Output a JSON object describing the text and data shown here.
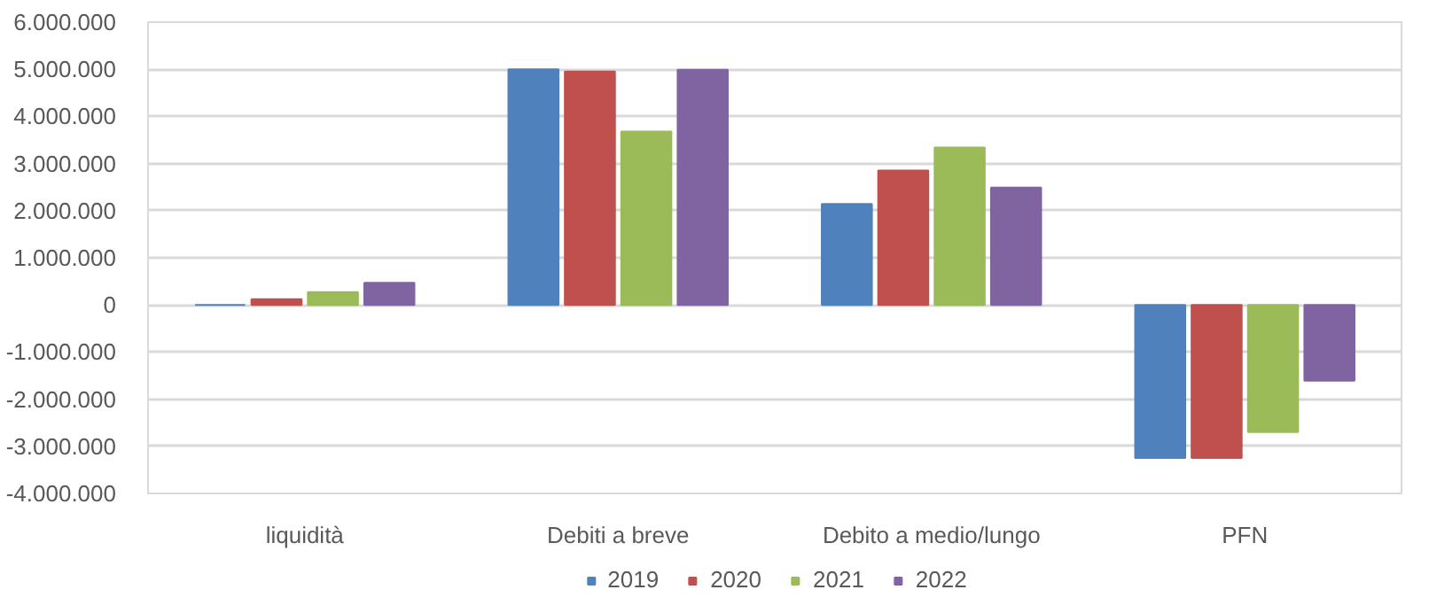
{
  "chart_data": {
    "type": "bar",
    "categories": [
      "liquidità",
      "Debiti a breve",
      "Debito a medio/lungo",
      "PFN"
    ],
    "series": [
      {
        "name": "2019",
        "color": "#4f81bd",
        "values": [
          0,
          5000000,
          2140000,
          -3250000
        ]
      },
      {
        "name": "2020",
        "color": "#c0504d",
        "values": [
          120000,
          4950000,
          2850000,
          -3250000
        ]
      },
      {
        "name": "2021",
        "color": "#9bbb59",
        "values": [
          270000,
          3680000,
          3340000,
          -2700000
        ]
      },
      {
        "name": "2022",
        "color": "#8064a2",
        "values": [
          470000,
          4990000,
          2490000,
          -1610000
        ]
      }
    ],
    "ylim": [
      -4000000,
      6000000
    ],
    "yticks": [
      {
        "value": -4000000,
        "label": "-4.000.000"
      },
      {
        "value": -3000000,
        "label": "-3.000.000"
      },
      {
        "value": -2000000,
        "label": "-2.000.000"
      },
      {
        "value": -1000000,
        "label": "-1.000.000"
      },
      0,
      {
        "value": 1000000,
        "label": "1.000.000"
      },
      {
        "value": 2000000,
        "label": "2.000.000"
      },
      {
        "value": 3000000,
        "label": "3.000.000"
      },
      {
        "value": 4000000,
        "label": "4.000.000"
      },
      {
        "value": 5000000,
        "label": "5.000.000"
      },
      {
        "value": 6000000,
        "label": "6.000.000"
      }
    ],
    "grid": "y",
    "legend": "bottom"
  }
}
